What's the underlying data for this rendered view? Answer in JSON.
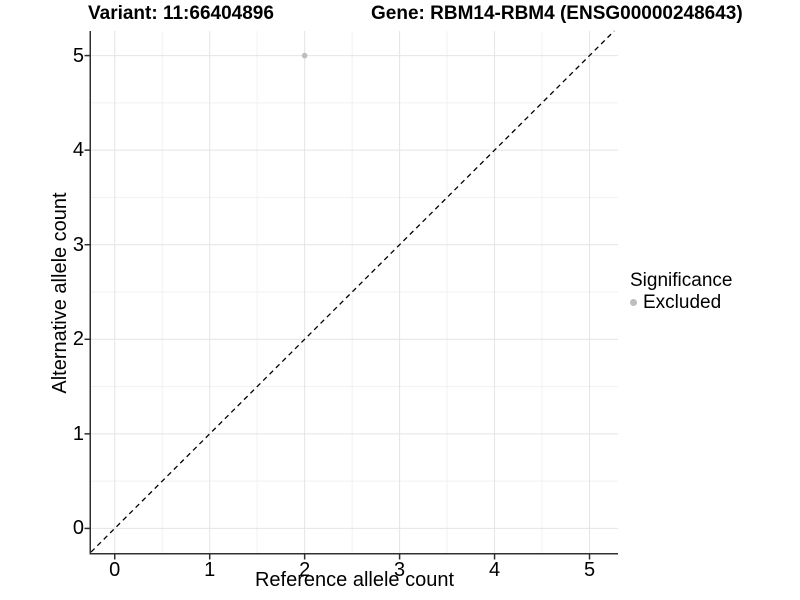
{
  "titles": {
    "variant": "Variant: 11:66404896",
    "gene": "Gene: RBM14-RBM4 (ENSG00000248643)"
  },
  "legend": {
    "title": "Significance",
    "items": [
      {
        "label": "Excluded",
        "marker": "circle-icon",
        "color": "#bebebe"
      }
    ]
  },
  "colors": {
    "point": "#bebebe",
    "axis_line": "#303030",
    "tick_mark": "#303030",
    "grid_major": "#e4e4e4",
    "grid_minor": "#f1f1f1",
    "identity_line": "#000000",
    "text": "#000000",
    "background": "#ffffff"
  },
  "chart_data": {
    "type": "scatter",
    "title_left": "Variant: 11:66404896",
    "title_right": "Gene: RBM14-RBM4 (ENSG00000248643)",
    "xlabel": "Reference allele count",
    "ylabel": "Alternative allele count",
    "xlim": [
      -0.25,
      5.3
    ],
    "ylim": [
      -0.26,
      5.26
    ],
    "x_ticks": [
      0,
      1,
      2,
      3,
      4,
      5
    ],
    "y_ticks": [
      0,
      1,
      2,
      3,
      4,
      5
    ],
    "grid": {
      "major": true,
      "minor": true
    },
    "legend_position": "right",
    "series": [
      {
        "name": "Excluded",
        "color": "#bebebe",
        "points": [
          {
            "x": 2,
            "y": 5
          }
        ]
      }
    ],
    "identity_line": {
      "slope": 1,
      "intercept": 0,
      "style": "dashed"
    }
  }
}
